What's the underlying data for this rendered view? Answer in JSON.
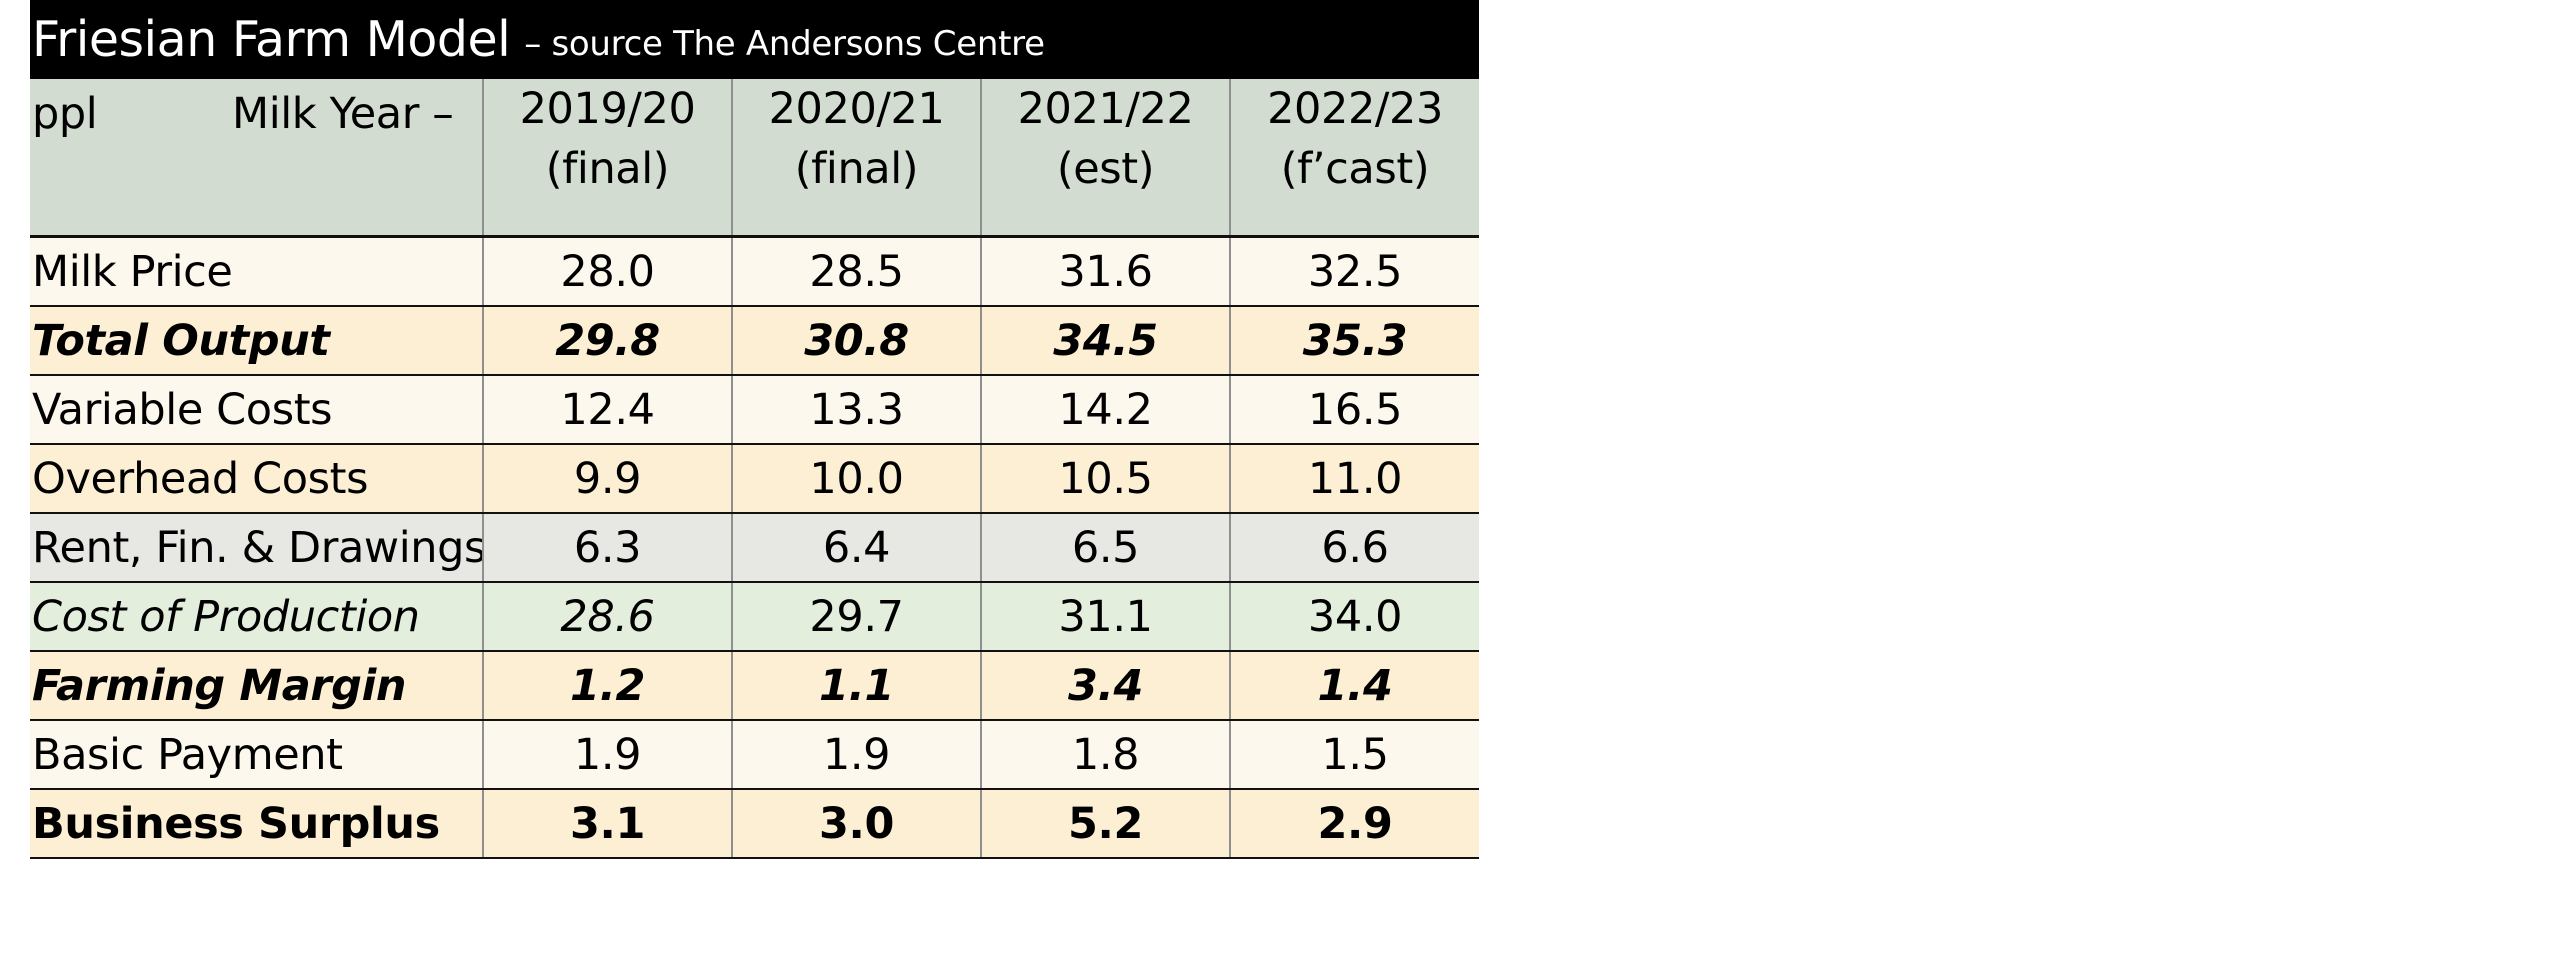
{
  "title": {
    "main": "Friesian Farm Model",
    "sub": "– source The Andersons Centre"
  },
  "header": {
    "unit": "ppl",
    "milk_year": "Milk Year –",
    "columns": [
      {
        "year": "2019/20",
        "note": "(final)"
      },
      {
        "year": "2020/21",
        "note": "(final)"
      },
      {
        "year": "2021/22",
        "note": "(est)"
      },
      {
        "year": "2022/23",
        "note": "(f’cast)"
      }
    ]
  },
  "rows": [
    {
      "label": "Milk Price",
      "values": [
        "28.0",
        "28.5",
        "31.6",
        "32.5"
      ]
    },
    {
      "label": "Total Output",
      "values": [
        "29.8",
        "30.8",
        "34.5",
        "35.3"
      ]
    },
    {
      "label": "Variable Costs",
      "values": [
        "12.4",
        "13.3",
        "14.2",
        "16.5"
      ]
    },
    {
      "label": "Overhead Costs",
      "values": [
        "9.9",
        "10.0",
        "10.5",
        "11.0"
      ]
    },
    {
      "label": "Rent, Fin. & Drawings",
      "values": [
        "6.3",
        "6.4",
        "6.5",
        "6.6"
      ]
    },
    {
      "label": "Cost of Production",
      "values": [
        "28.6",
        "29.7",
        "31.1",
        "34.0"
      ]
    },
    {
      "label": "Farming Margin",
      "values": [
        "1.2",
        "1.1",
        "3.4",
        "1.4"
      ]
    },
    {
      "label": "Basic Payment",
      "values": [
        "1.9",
        "1.9",
        "1.8",
        "1.5"
      ]
    },
    {
      "label": "Business Surplus",
      "values": [
        "3.1",
        "3.0",
        "5.2",
        "2.9"
      ]
    }
  ],
  "colors": {
    "title_bg": "#000000",
    "header_bg": "#d3dcd1",
    "cream": "#fdf8ed",
    "tan": "#fcefd3",
    "grey": "#e7e8e3",
    "green": "#e4eedd"
  }
}
